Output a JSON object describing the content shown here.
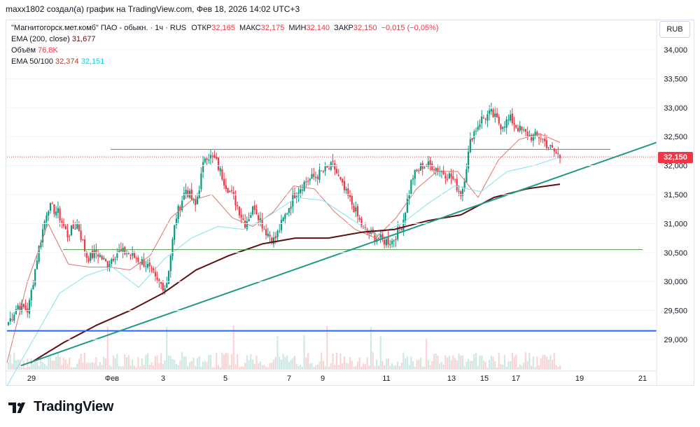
{
  "header": {
    "attribution": "maxx1802 создал(а) график на TradingView.com, Фев 18, 2026 14:02 UTC+3"
  },
  "legend": {
    "symbol": "\"Магнитогорск.мет.комб\" ПАО - обыкн. · 1ч · RUS",
    "open_label": "ОТКР",
    "open": "32,165",
    "high_label": "МАКС",
    "high": "32,175",
    "low_label": "МИН",
    "low": "32,140",
    "close_label": "ЗАКР",
    "close": "32,150",
    "change": "−0,015 (−0,05%)",
    "ema200_label": "EMA (200, close)",
    "ema200_value": "31,677",
    "volume_label": "Объём",
    "volume_value": "76,8K",
    "ema_50_100_label": "EMA 50/100",
    "ema50_value": "32,374",
    "ema100_value": "32,151"
  },
  "currency_button": "RUB",
  "last_price_tag": "32,150",
  "brand": {
    "name": "TradingView"
  },
  "colors": {
    "up": "#089981",
    "down": "#f23645",
    "ema50": "#e3726a",
    "ema100": "#7fe3ef",
    "ema200": "#5d0f12",
    "trendline": "#1f9a87",
    "support": "#2962ff",
    "levels": "#4f9a45"
  },
  "chart_data": {
    "type": "candlestick",
    "interval": "1h",
    "y_axis": {
      "ticks": [
        "34,000",
        "33,500",
        "33,000",
        "32,500",
        "32,000",
        "31,500",
        "31,000",
        "30,500",
        "30,000",
        "29,500",
        "29,000"
      ],
      "ylim": [
        28.55,
        34.15
      ]
    },
    "x_axis": {
      "ticks": [
        "29",
        "Фев",
        "3",
        "5",
        "7",
        "9",
        "11",
        "13",
        "15",
        "17",
        "19",
        "21"
      ]
    },
    "last_close": 32.15,
    "horizontal_lines": [
      {
        "name": "resistance",
        "value": 32.28
      },
      {
        "name": "mid-support",
        "value": 30.55
      },
      {
        "name": "support",
        "value": 29.15
      }
    ],
    "trendline": {
      "from": {
        "date": "28 Jan",
        "price": 28.6
      },
      "to": {
        "date": "21 Feb",
        "price": 32.4
      }
    },
    "close_path": [
      29.3,
      29.6,
      29.5,
      30.5,
      31.3,
      31.2,
      30.8,
      31.0,
      30.4,
      30.5,
      30.3,
      30.5,
      30.5,
      30.4,
      30.3,
      30.0,
      29.9,
      31.1,
      31.6,
      31.3,
      32.2,
      32.1,
      31.7,
      31.4,
      31.0,
      31.3,
      30.9,
      30.7,
      31.1,
      31.5,
      31.7,
      31.8,
      31.9,
      32.0,
      31.6,
      31.3,
      30.9,
      30.8,
      30.7,
      30.7,
      31.0,
      31.8,
      32.0,
      32.0,
      31.9,
      31.8,
      31.5,
      32.5,
      32.8,
      32.9,
      32.7,
      32.8,
      32.6,
      32.5,
      32.5,
      32.3,
      32.15
    ],
    "ema50_path": [
      28.6,
      30.0,
      31.0,
      30.3,
      30.25,
      30.25,
      30.2,
      30.45,
      31.1,
      31.4,
      31.5,
      31.1,
      30.95,
      31.2,
      31.65,
      31.6,
      31.2,
      30.9,
      30.75,
      31.1,
      31.6,
      31.9,
      31.9,
      31.45,
      32.1,
      32.45,
      32.55,
      32.4
    ],
    "ema100_path": [
      28.2,
      29.0,
      29.8,
      30.1,
      30.25,
      29.9,
      30.4,
      30.75,
      30.95,
      30.9,
      31.15,
      31.45,
      31.4,
      31.1,
      30.8,
      31.0,
      31.35,
      31.65,
      31.55,
      31.9,
      32.0,
      32.15
    ],
    "ema200_path": [
      28.6,
      28.95,
      29.25,
      29.5,
      29.8,
      30.2,
      30.45,
      30.65,
      30.75,
      30.75,
      30.85,
      30.9,
      31.05,
      31.15,
      31.45,
      31.6,
      31.68
    ]
  }
}
